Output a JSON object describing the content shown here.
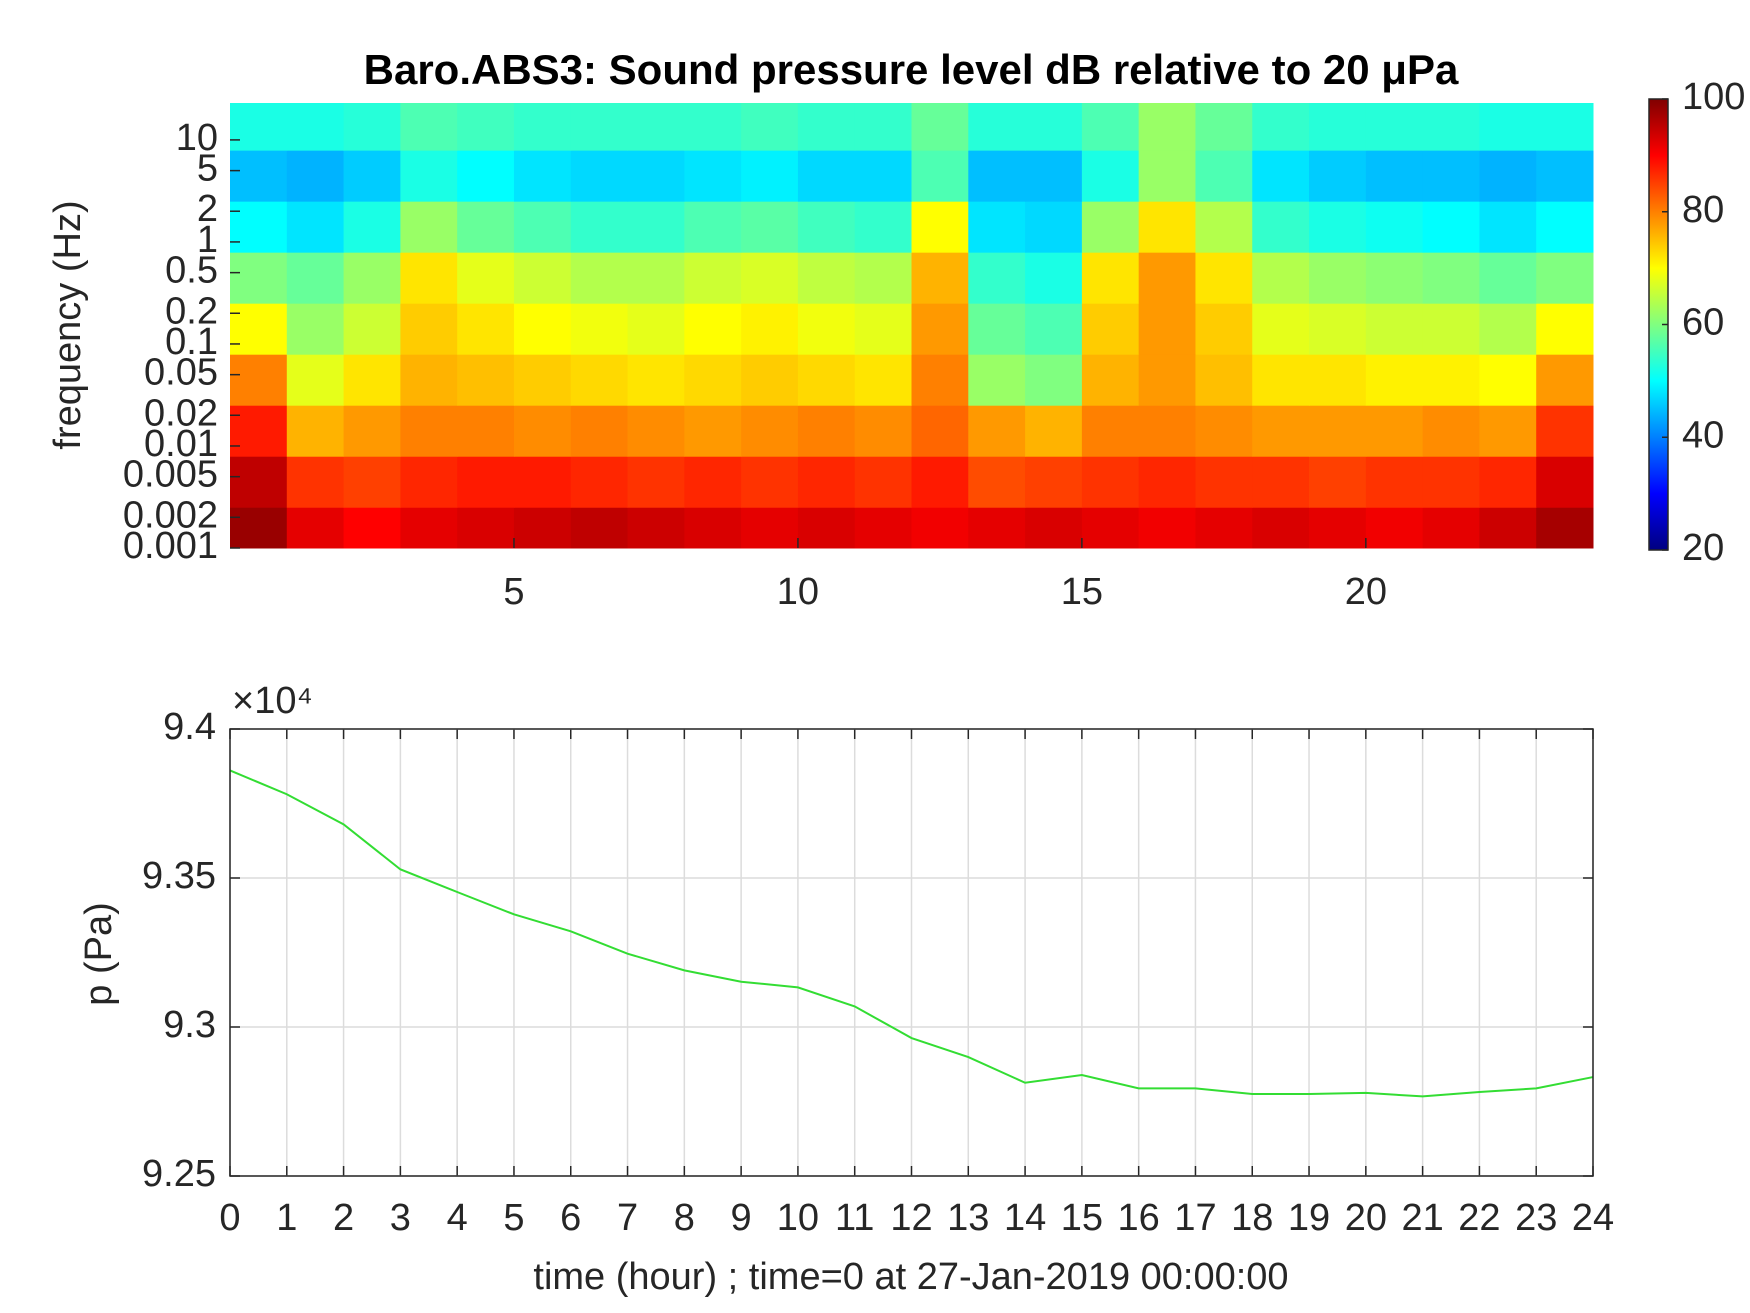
{
  "chart_data": [
    {
      "type": "heatmap",
      "title": "Baro.ABS3: Sound pressure level dB relative to 20 μPa",
      "y_label": "frequency (Hz)",
      "x": [
        0.5,
        1.5,
        2.5,
        3.5,
        4.5,
        5.5,
        6.5,
        7.5,
        8.5,
        9.5,
        10.5,
        11.5,
        12.5,
        13.5,
        14.5,
        15.5,
        16.5,
        17.5,
        18.5,
        19.5,
        20.5,
        21.5,
        22.5,
        23.5
      ],
      "y": [
        0.0014,
        0.0045,
        0.014,
        0.045,
        0.14,
        0.45,
        1.4,
        4.5,
        14
      ],
      "z": [
        [
          98,
          92,
          90,
          92,
          93,
          94,
          95,
          94,
          93,
          92,
          93,
          92,
          91,
          92,
          93,
          92,
          91,
          92,
          93,
          92,
          91,
          92,
          94,
          97
        ],
        [
          95,
          86,
          85,
          87,
          88,
          88,
          87,
          86,
          87,
          86,
          87,
          86,
          88,
          84,
          85,
          86,
          87,
          86,
          86,
          85,
          86,
          86,
          87,
          93
        ],
        [
          88,
          76,
          78,
          80,
          80,
          79,
          80,
          79,
          78,
          79,
          80,
          79,
          82,
          78,
          76,
          80,
          80,
          79,
          78,
          78,
          78,
          79,
          78,
          86
        ],
        [
          80,
          68,
          72,
          76,
          75,
          74,
          73,
          72,
          73,
          74,
          73,
          72,
          80,
          62,
          60,
          76,
          78,
          75,
          72,
          72,
          71,
          71,
          70,
          78
        ],
        [
          70,
          62,
          66,
          74,
          72,
          70,
          69,
          68,
          70,
          71,
          69,
          68,
          78,
          58,
          56,
          74,
          78,
          74,
          68,
          67,
          66,
          66,
          64,
          70
        ],
        [
          60,
          58,
          62,
          72,
          68,
          66,
          64,
          64,
          66,
          67,
          65,
          64,
          76,
          54,
          52,
          72,
          78,
          72,
          64,
          62,
          61,
          60,
          58,
          60
        ],
        [
          50,
          48,
          52,
          62,
          58,
          56,
          54,
          54,
          56,
          57,
          55,
          54,
          70,
          48,
          47,
          62,
          72,
          64,
          54,
          52,
          51,
          50,
          48,
          50
        ],
        [
          45,
          44,
          46,
          52,
          50,
          48,
          47,
          47,
          48,
          49,
          47,
          47,
          56,
          45,
          45,
          52,
          62,
          56,
          48,
          46,
          45,
          45,
          44,
          45
        ],
        [
          52,
          52,
          53,
          56,
          55,
          54,
          54,
          54,
          54,
          55,
          54,
          54,
          58,
          53,
          53,
          56,
          62,
          58,
          54,
          53,
          53,
          53,
          52,
          52
        ]
      ],
      "xlim": [
        0,
        24
      ],
      "xticks": [
        5,
        10,
        15,
        20
      ],
      "ylim": [
        0.001,
        23
      ],
      "y_log": true,
      "yticks": [
        0.001,
        0.002,
        0.005,
        0.01,
        0.02,
        0.05,
        0.1,
        0.2,
        0.5,
        1,
        2,
        5,
        10
      ],
      "colormap": "jet",
      "clim": [
        20,
        100
      ],
      "cticks": [
        20,
        40,
        60,
        80,
        100
      ]
    },
    {
      "type": "line",
      "x_label": "time (hour) ; time=0 at 27-Jan-2019 00:00:00",
      "y_label": "p (Pa)",
      "y_multiplier": "×10⁴",
      "x": [
        0,
        1,
        2,
        3,
        4,
        5,
        6,
        7,
        8,
        9,
        10,
        11,
        12,
        13,
        14,
        15,
        16,
        17,
        18,
        19,
        20,
        21,
        22,
        23,
        24
      ],
      "values": [
        93861,
        93781,
        93680,
        93529,
        93453,
        93378,
        93321,
        93246,
        93190,
        93152,
        93133,
        93069,
        92963,
        92899,
        92813,
        92839,
        92794,
        92794,
        92775,
        92775,
        92779,
        92767,
        92782,
        92794,
        92832
      ],
      "color": "#33dd33",
      "xlim": [
        0,
        24
      ],
      "xticks": [
        0,
        1,
        2,
        3,
        4,
        5,
        6,
        7,
        8,
        9,
        10,
        11,
        12,
        13,
        14,
        15,
        16,
        17,
        18,
        19,
        20,
        21,
        22,
        23,
        24
      ],
      "ylim": [
        92500,
        94000
      ],
      "yticks": [
        {
          "value": 92500,
          "label": "9.25"
        },
        {
          "value": 93000,
          "label": "9.3"
        },
        {
          "value": 93500,
          "label": "9.35"
        },
        {
          "value": 94000,
          "label": "9.4"
        }
      ],
      "grid": true
    }
  ]
}
